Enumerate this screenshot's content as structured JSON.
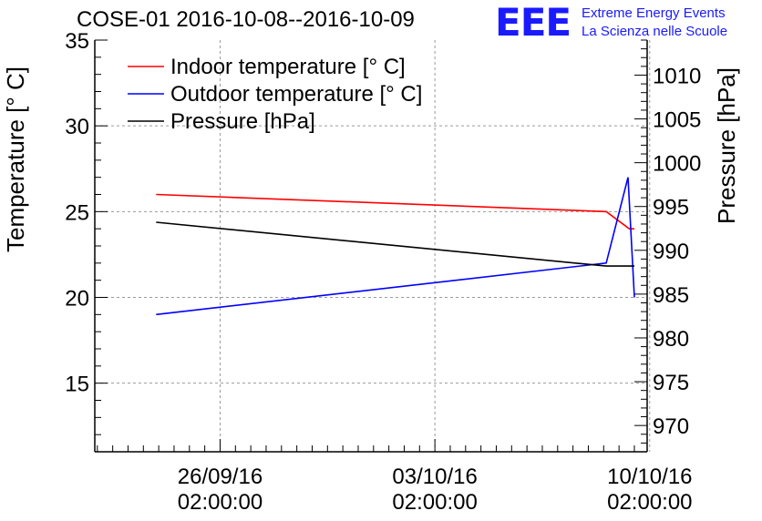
{
  "header": {
    "title": "COSE-01 2016-10-08--2016-10-09",
    "logo_mark": "EEE",
    "logo_line1": "Extreme Energy Events",
    "logo_line2": "La Scienza nelle Scuole"
  },
  "colors": {
    "indoor": "#ff0000",
    "outdoor": "#0000ff",
    "pressure": "#000000",
    "logo": "#1a1aff"
  },
  "chart_data": {
    "type": "line",
    "title": "COSE-01 2016-10-08--2016-10-09",
    "xlabel": "",
    "ylabel": "Temperature [° C]",
    "ylabel_right": "Pressure [hPa]",
    "xlim": [
      "2016-09-22T00:00:00",
      "2016-10-10T00:00:00"
    ],
    "ylim": [
      11,
      35
    ],
    "ylim_right": [
      967,
      1014
    ],
    "x_ticks": [
      {
        "date": "2016-09-26T02:00:00",
        "line1": "26/09/16",
        "line2": "02:00:00"
      },
      {
        "date": "2016-10-03T02:00:00",
        "line1": "03/10/16",
        "line2": "02:00:00"
      },
      {
        "date": "2016-10-10T02:00:00",
        "line1": "10/10/16",
        "line2": "02:00:00"
      }
    ],
    "y_ticks": [
      15,
      20,
      25,
      30,
      35
    ],
    "y_ticks_right": [
      970,
      975,
      980,
      985,
      990,
      995,
      1000,
      1005,
      1010
    ],
    "grid": true,
    "legend_position": "top-left",
    "series": [
      {
        "name": "Indoor temperature [° C]",
        "axis": "left",
        "color": "#ff0000",
        "x": [
          "2016-09-24T00:00:00",
          "2016-10-08T16:00:00",
          "2016-10-09T10:00:00",
          "2016-10-09T14:00:00"
        ],
        "y": [
          26.0,
          25.0,
          24.0,
          24.0
        ]
      },
      {
        "name": "Outdoor temperature [° C]",
        "axis": "left",
        "color": "#0000ff",
        "x": [
          "2016-09-24T00:00:00",
          "2016-10-08T16:00:00",
          "2016-10-09T09:00:00",
          "2016-10-09T14:00:00"
        ],
        "y": [
          19.0,
          22.0,
          27.0,
          20.0
        ]
      },
      {
        "name": "Pressure [hPa]",
        "axis": "right",
        "color": "#000000",
        "x": [
          "2016-09-24T00:00:00",
          "2016-10-08T16:00:00",
          "2016-10-09T10:00:00",
          "2016-10-09T14:00:00"
        ],
        "y": [
          993.2,
          988.2,
          988.2,
          988.2
        ]
      }
    ]
  }
}
